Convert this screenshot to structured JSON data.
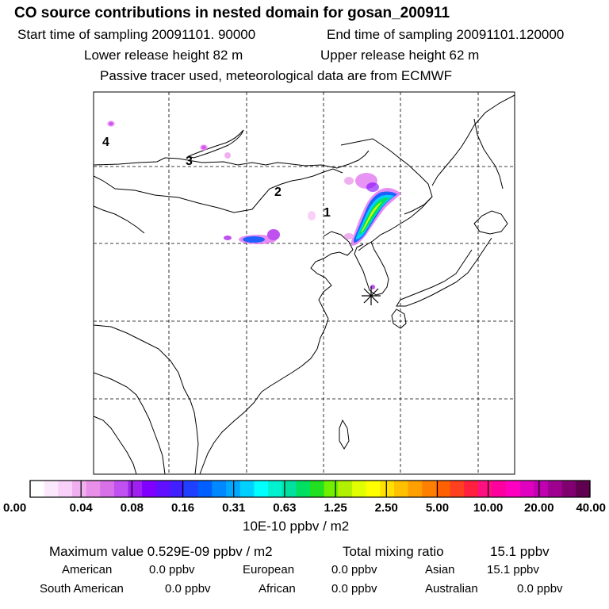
{
  "header": {
    "title": "CO  source contributions in nested domain for gosan_200911",
    "start_time": "Start time of sampling 20091101. 90000",
    "end_time": "End time of sampling 20091101.120000",
    "lower_release": "Lower release height   82 m",
    "upper_release": "Upper release height   62 m",
    "tracer_note": "Passive tracer used, meteorological data are from ECMWF"
  },
  "map": {
    "region_labels": [
      "1",
      "2",
      "3",
      "4"
    ],
    "receptor_marker": "asterisk-icon"
  },
  "colorbar": {
    "tick_labels": [
      "0.00",
      "0.04",
      "0.08",
      "0.16",
      "0.31",
      "0.63",
      "1.25",
      "2.50",
      "5.00",
      "10.00",
      "20.00",
      "40.00"
    ],
    "unit_label": "10E-10 ppbv / m2",
    "colors": [
      "#ffffff",
      "#fce8fc",
      "#f8d0f8",
      "#f0b0f0",
      "#e890e8",
      "#d870e8",
      "#c050f0",
      "#a020f0",
      "#8000ff",
      "#6010ff",
      "#4020ff",
      "#2040ff",
      "#0060ff",
      "#0088ff",
      "#00a8ff",
      "#00d0ff",
      "#00ffff",
      "#00f0d0",
      "#00e0a0",
      "#00e060",
      "#20e020",
      "#70f000",
      "#b0f000",
      "#e0ff00",
      "#ffff00",
      "#ffe000",
      "#ffc000",
      "#ffa000",
      "#ff8000",
      "#ff6000",
      "#ff4020",
      "#ff2040",
      "#ff1080",
      "#ff00a0",
      "#ff00c0",
      "#e000c0",
      "#c000b0",
      "#a00090",
      "#800070",
      "#600050"
    ]
  },
  "stats": {
    "max_value": "Maximum value  0.529E-09 ppbv / m2",
    "total_mixing": "Total mixing ratio",
    "total_mixing_value": "15.1 ppbv",
    "regions": [
      {
        "name": "American",
        "value": "0.0 ppbv"
      },
      {
        "name": "European",
        "value": "0.0 ppbv"
      },
      {
        "name": "Asian",
        "value": "15.1 ppbv"
      },
      {
        "name": "South American",
        "value": "0.0 ppbv"
      },
      {
        "name": "African",
        "value": "0.0 ppbv"
      },
      {
        "name": "Australian",
        "value": "0.0 ppbv"
      }
    ]
  }
}
